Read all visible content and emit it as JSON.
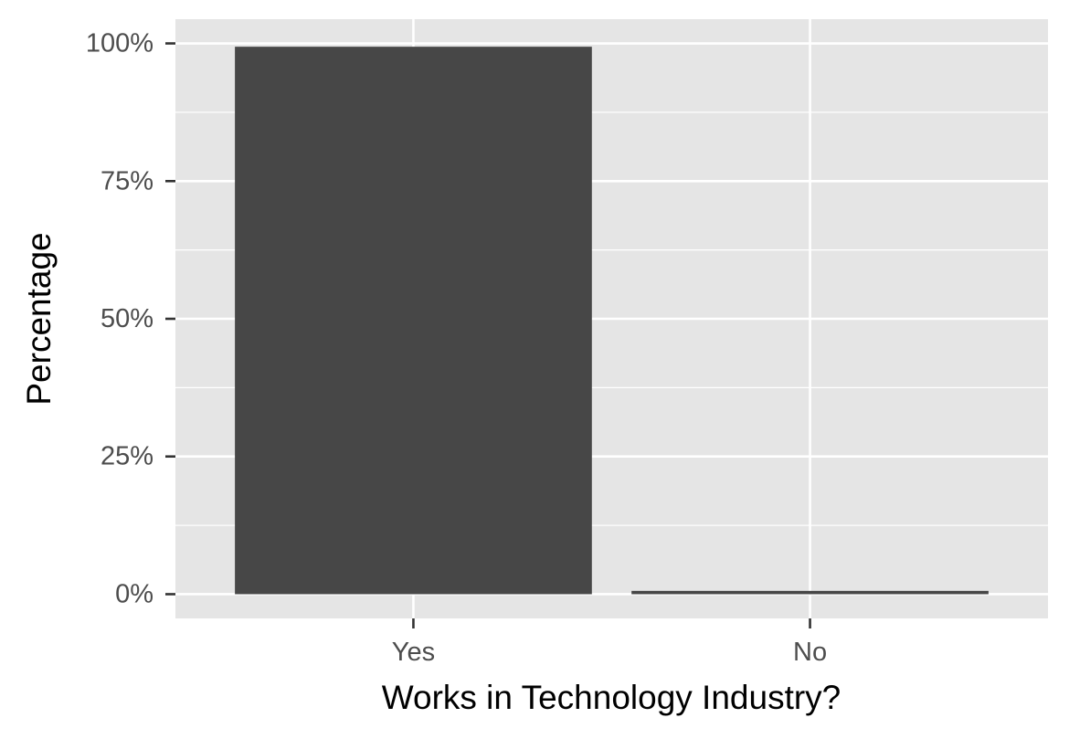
{
  "chart_data": {
    "type": "bar",
    "categories": [
      "Yes",
      "No"
    ],
    "values": [
      99.4,
      0.6
    ],
    "title": "",
    "xlabel": "Works in Technology Industry?",
    "ylabel": "Percentage",
    "ylim": [
      -4.4,
      104.4
    ],
    "yticks": [
      0,
      25,
      50,
      75,
      100
    ],
    "ytick_labels": [
      "0%",
      "25%",
      "50%",
      "75%",
      "100%"
    ],
    "grid": true,
    "legend": "none",
    "colors": {
      "panel_background": "#e5e5e5",
      "grid": "#ffffff",
      "bar": "#474747",
      "tick_mark": "#333333",
      "tick_text": "#4d4d4d",
      "axis_title": "#000000"
    }
  }
}
